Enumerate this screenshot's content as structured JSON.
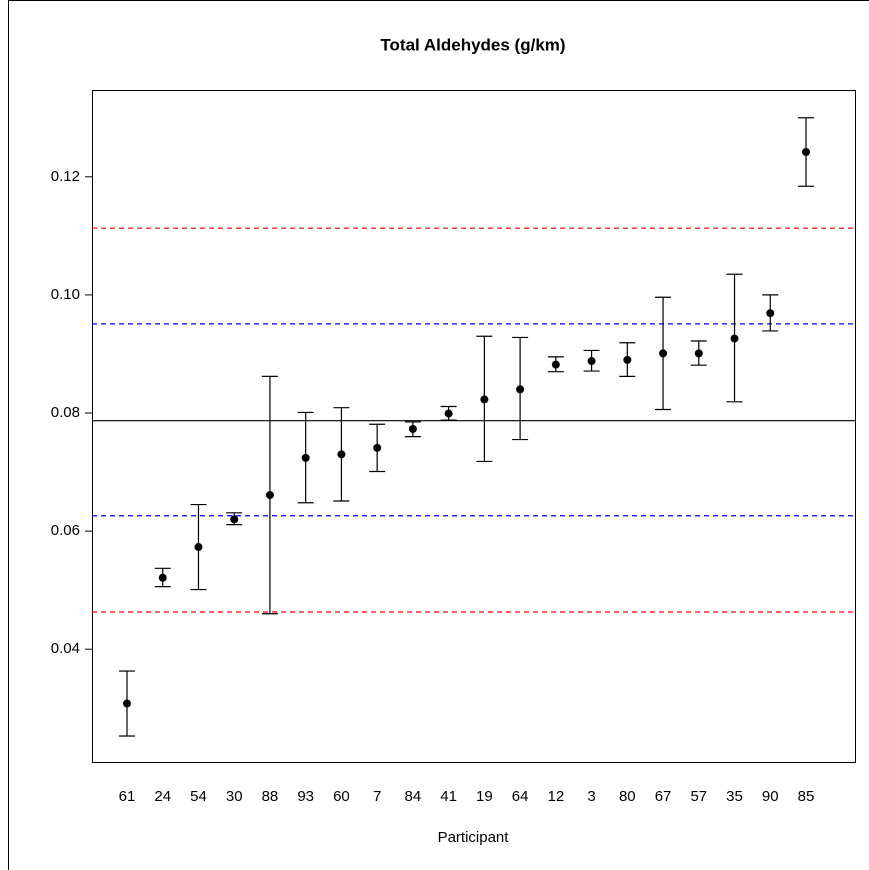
{
  "chart_data": {
    "type": "errorbar",
    "title": "Total Aldehydes (g/km)",
    "x_label": "Participant",
    "categories": [
      "61",
      "24",
      "54",
      "30",
      "88",
      "93",
      "60",
      "7",
      "84",
      "41",
      "19",
      "64",
      "12",
      "3",
      "80",
      "67",
      "57",
      "35",
      "90",
      "85"
    ],
    "values": [
      0.0308,
      0.0521,
      0.0573,
      0.062,
      0.0661,
      0.0724,
      0.073,
      0.0741,
      0.0773,
      0.0799,
      0.0823,
      0.084,
      0.0882,
      0.0888,
      0.089,
      0.0901,
      0.0901,
      0.0926,
      0.0969,
      0.1242
    ],
    "lower": [
      0.0253,
      0.0506,
      0.0501,
      0.0611,
      0.046,
      0.0648,
      0.0651,
      0.0701,
      0.076,
      0.0788,
      0.0718,
      0.0755,
      0.087,
      0.0871,
      0.0862,
      0.0806,
      0.0881,
      0.0819,
      0.0939,
      0.1184
    ],
    "upper": [
      0.0363,
      0.0537,
      0.0645,
      0.0631,
      0.0862,
      0.0801,
      0.0809,
      0.0781,
      0.0785,
      0.0811,
      0.093,
      0.0928,
      0.0895,
      0.0906,
      0.0919,
      0.0996,
      0.0922,
      0.1035,
      0.1,
      0.13
    ],
    "color": "#000000",
    "hlines": [
      {
        "value": 0.0787,
        "color": "#000000",
        "style": "solid"
      },
      {
        "value": 0.0626,
        "color": "#0000ff",
        "style": "dashed"
      },
      {
        "value": 0.0951,
        "color": "#0000ff",
        "style": "dashed"
      },
      {
        "value": 0.0463,
        "color": "#ff0000",
        "style": "dashed"
      },
      {
        "value": 0.1113,
        "color": "#ff0000",
        "style": "dashed"
      }
    ],
    "ylim": [
      0.0209,
      0.1347
    ],
    "yticks": [
      {
        "value": 0.04,
        "label": "0.04"
      },
      {
        "value": 0.06,
        "label": "0.06"
      },
      {
        "value": 0.08,
        "label": "0.08"
      },
      {
        "value": 0.1,
        "label": "0.10"
      },
      {
        "value": 0.12,
        "label": "0.12"
      }
    ]
  }
}
